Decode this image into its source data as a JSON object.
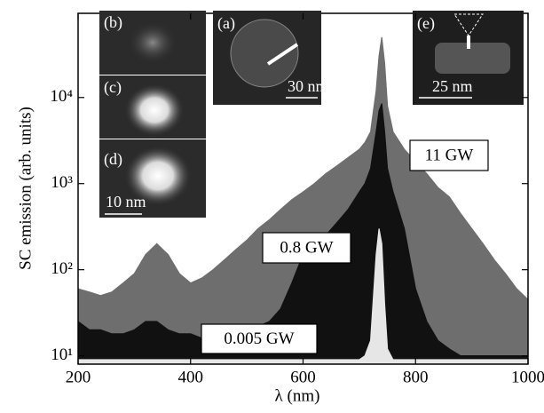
{
  "chart_data": {
    "type": "line",
    "xlabel": "λ (nm)",
    "ylabel": "SC emission (arb. units)",
    "x": [
      200,
      220,
      240,
      260,
      280,
      300,
      320,
      340,
      360,
      380,
      400,
      420,
      440,
      460,
      480,
      500,
      520,
      540,
      560,
      580,
      600,
      620,
      640,
      660,
      680,
      700,
      710,
      720,
      730,
      735,
      740,
      745,
      750,
      760,
      780,
      800,
      820,
      840,
      860,
      880,
      900,
      920,
      940,
      960,
      980,
      1000
    ],
    "series": [
      {
        "name": "11 GW",
        "color": "#6e6e6e",
        "values": [
          60,
          55,
          50,
          55,
          70,
          90,
          150,
          200,
          150,
          90,
          70,
          80,
          100,
          130,
          170,
          220,
          300,
          380,
          500,
          650,
          800,
          1000,
          1300,
          1600,
          2000,
          2500,
          3000,
          4000,
          12000,
          30000,
          50000,
          25000,
          8000,
          4000,
          2500,
          1800,
          1300,
          900,
          700,
          450,
          300,
          200,
          130,
          90,
          60,
          45
        ]
      },
      {
        "name": "0.8 GW",
        "color": "#111111",
        "values": [
          25,
          20,
          20,
          18,
          18,
          20,
          25,
          25,
          20,
          18,
          18,
          16,
          16,
          16,
          18,
          20,
          22,
          25,
          35,
          70,
          150,
          200,
          250,
          350,
          500,
          800,
          1000,
          1500,
          4000,
          7000,
          8500,
          4000,
          1500,
          800,
          300,
          60,
          25,
          15,
          12,
          10,
          10,
          10,
          10,
          10,
          10,
          10
        ]
      },
      {
        "name": "0.005 GW",
        "color": "#e6e6e6",
        "values": [
          9,
          9,
          9,
          9,
          9,
          9,
          9,
          9,
          9,
          9,
          9,
          9,
          9,
          9,
          9,
          9,
          9,
          9,
          9,
          9,
          9,
          9,
          9,
          9,
          9,
          9,
          10,
          15,
          150,
          300,
          200,
          40,
          12,
          9,
          9,
          9,
          9,
          9,
          9,
          9,
          9,
          9,
          9,
          9,
          9,
          9
        ]
      }
    ],
    "xlim": [
      200,
      1000
    ],
    "xticks": [
      200,
      400,
      600,
      800,
      1000
    ],
    "ylim": [
      8,
      95000
    ],
    "yticks": [
      {
        "value": 10,
        "label": "10¹"
      },
      {
        "value": 100,
        "label": "10²"
      },
      {
        "value": 1000,
        "label": "10³"
      },
      {
        "value": 10000,
        "label": "10⁴"
      }
    ],
    "log_y": true,
    "annotations": [
      "(a)",
      "30 nm",
      "(b)",
      "(c)",
      "(d)",
      "10 nm",
      "(e)",
      "25 nm"
    ]
  }
}
